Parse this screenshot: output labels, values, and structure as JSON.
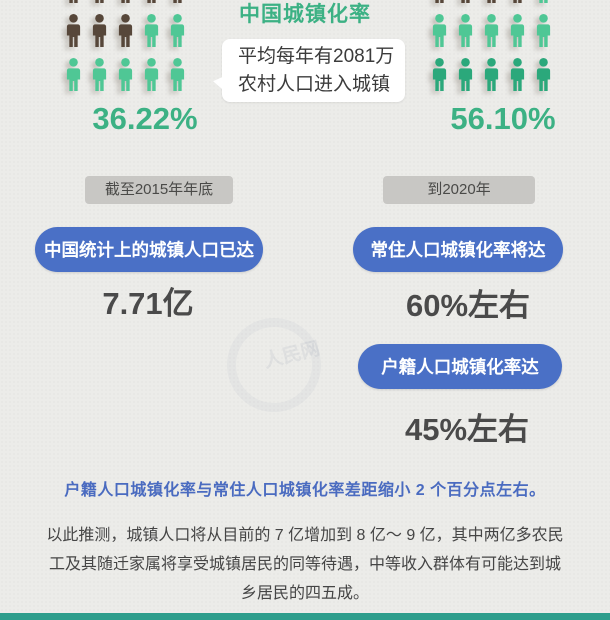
{
  "palette": {
    "brown": "#57473A",
    "green": "#4FC795",
    "green_dark": "#2BA87B",
    "accent_blue": "#4A70C6",
    "title_green": "#3CB184",
    "badge_bg": "#C8C7C4",
    "dark_text": "#4A4A4A",
    "highlight_blue": "#4A6BC0",
    "teal_bar": "#2E9E8C"
  },
  "header": {
    "title": "中国城镇化率"
  },
  "bubble": {
    "line1": "平均每年有2081万",
    "line2": "农村人口进入城镇"
  },
  "left_chart": {
    "percent": "36.22%",
    "rows": [
      [
        "brown",
        "brown",
        "brown",
        "brown",
        "brown"
      ],
      [
        "brown",
        "brown",
        "brown",
        "green",
        "green"
      ],
      [
        "green",
        "green",
        "green",
        "green",
        "green"
      ]
    ]
  },
  "right_chart": {
    "percent": "56.10%",
    "rows": [
      [
        "brown",
        "brown",
        "brown",
        "brown",
        "green"
      ],
      [
        "green",
        "green",
        "green",
        "green",
        "green"
      ],
      [
        "green_dark",
        "green_dark",
        "green_dark",
        "green_dark",
        "green_dark"
      ]
    ]
  },
  "timeline": {
    "left_badge": "截至2015年年底",
    "right_badge": "到2020年"
  },
  "stats": {
    "stat1": {
      "label": "中国统计上的城镇人口已达",
      "value": "7.71亿"
    },
    "stat2": {
      "label": "常住人口城镇化率将达",
      "value": "60%左右"
    },
    "stat3": {
      "label": "户籍人口城镇化率达",
      "value": "45%左右"
    }
  },
  "highlight": "户籍人口城镇化率与常住人口城镇化率差距缩小 2 个百分点左右。",
  "paragraph": "以此推测，城镇人口将从目前的 7 亿增加到 8 亿～ 9 亿，其中两亿多农民工及其随迁家属将享受城镇居民的同等待遇，中等收入群体有可能达到城乡居民的四五成。",
  "watermark": "人民网",
  "chart_data": {
    "type": "bar",
    "subtype": "pictograph",
    "title": "中国城镇化率",
    "values": [
      36.22,
      56.1
    ],
    "value_labels": [
      "36.22%",
      "56.10%"
    ],
    "unit": "%",
    "annotation": "平均每年有2081万农村人口进入城镇",
    "related_stats": [
      {
        "period": "截至2015年年底",
        "label": "中国统计上的城镇人口已达",
        "value": "7.71亿"
      },
      {
        "period": "到2020年",
        "label": "常住人口城镇化率将达",
        "value": "60%左右"
      },
      {
        "period": "到2020年",
        "label": "户籍人口城镇化率达",
        "value": "45%左右"
      }
    ],
    "note": "户籍人口城镇化率与常住人口城镇化率差距缩小 2 个百分点左右。"
  }
}
